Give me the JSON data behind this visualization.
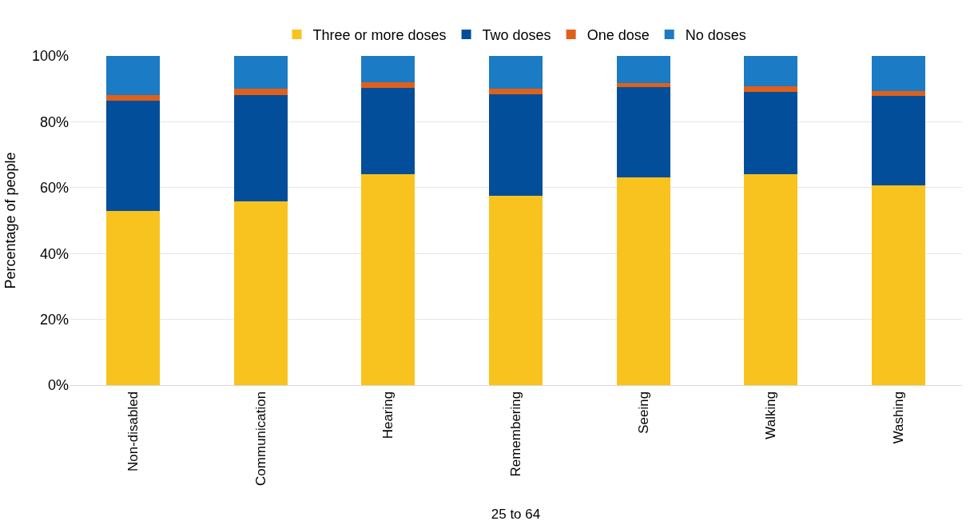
{
  "chart_data": {
    "type": "bar",
    "stacked": true,
    "ylabel": "Percentage of people",
    "xlabel": "25 to 64",
    "categories": [
      "Non-disabled",
      "Communication",
      "Hearing",
      "Remembering",
      "Seeing",
      "Walking",
      "Washing"
    ],
    "series": [
      {
        "name": "Three or more doses",
        "color": "#f9c31f",
        "values": [
          52.8,
          55.8,
          64.1,
          57.6,
          63.2,
          64.2,
          60.8
        ]
      },
      {
        "name": "Two doses",
        "color": "#034e9a",
        "values": [
          33.5,
          32.2,
          26.3,
          30.7,
          27.3,
          25.0,
          27.0
        ]
      },
      {
        "name": "One dose",
        "color": "#e0601a",
        "values": [
          1.7,
          2.0,
          1.5,
          1.8,
          1.2,
          1.5,
          1.6
        ]
      },
      {
        "name": "No doses",
        "color": "#1b7bc4",
        "values": [
          12.0,
          10.0,
          8.1,
          9.9,
          8.3,
          9.3,
          10.6
        ]
      }
    ],
    "ylim": [
      0,
      100
    ],
    "yticks": [
      {
        "value": 0,
        "label": "0%"
      },
      {
        "value": 20,
        "label": "20%"
      },
      {
        "value": 40,
        "label": "40%"
      },
      {
        "value": 60,
        "label": "60%"
      },
      {
        "value": 80,
        "label": "80%"
      },
      {
        "value": 100,
        "label": "100%"
      }
    ],
    "grid": "y",
    "legend": "top"
  }
}
